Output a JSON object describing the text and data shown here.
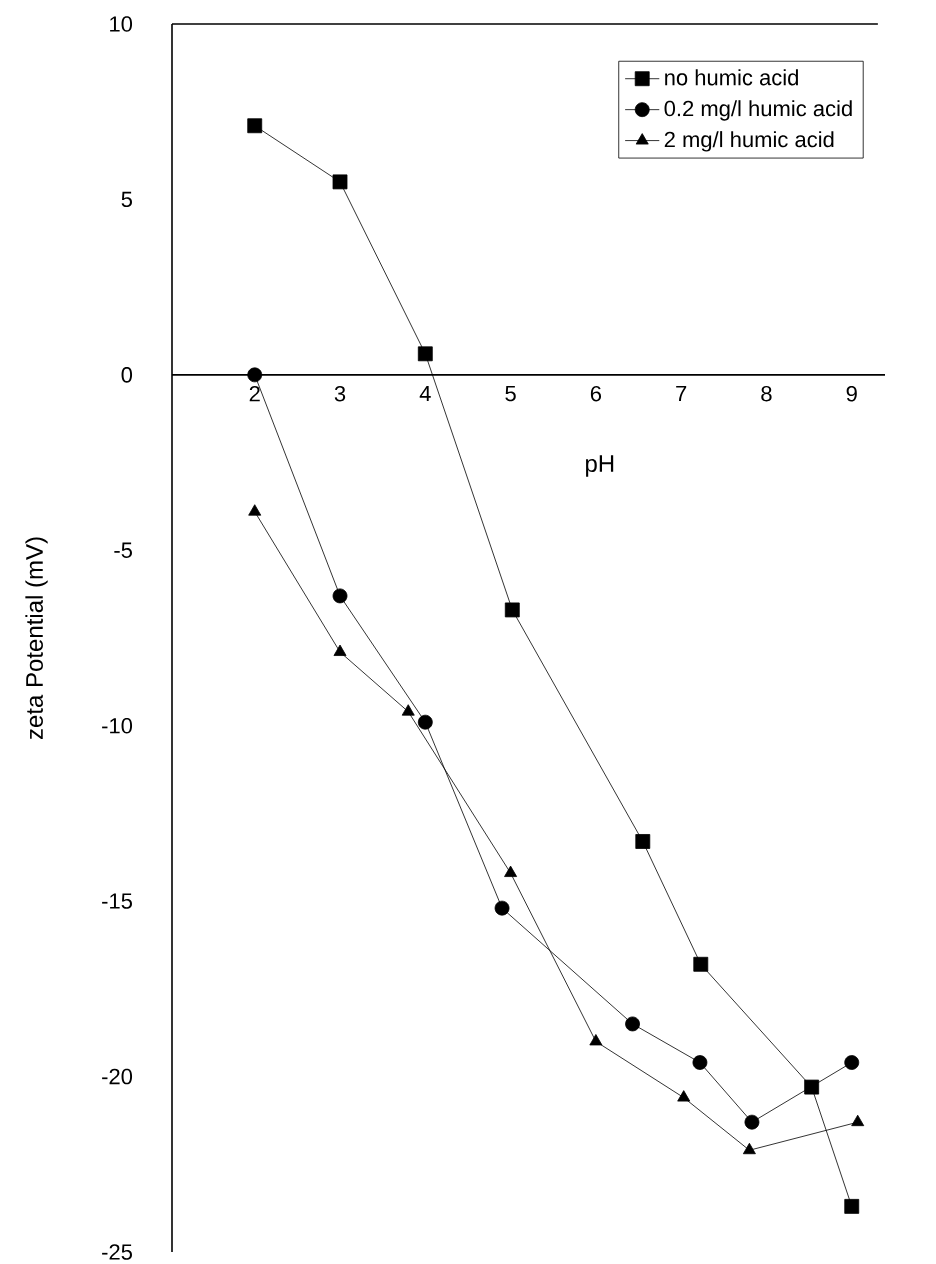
{
  "chart_data": {
    "type": "line",
    "xlabel": "pH",
    "ylabel": "zeta Potential (mV)",
    "xlim": [
      1.03,
      9.39
    ],
    "ylim": [
      -25,
      10
    ],
    "xticks": [
      2,
      3,
      4,
      5,
      6,
      7,
      8,
      9
    ],
    "yticks": [
      -25,
      -20,
      -15,
      -10,
      -5,
      0,
      5,
      10
    ],
    "legend": "top right",
    "grid": false,
    "series": [
      {
        "name": "no humic acid",
        "color": "#000000",
        "marker": "square",
        "x": [
          2,
          3,
          4,
          5.02,
          6.55,
          7.23,
          8.53,
          9.0
        ],
        "values": [
          7.1,
          5.5,
          0.6,
          -6.7,
          -13.3,
          -16.8,
          -20.3,
          -23.7
        ]
      },
      {
        "name": "0.2 mg/l humic acid",
        "color": "#000000",
        "marker": "circle",
        "x": [
          2,
          3,
          4,
          4.9,
          6.43,
          7.22,
          7.83,
          9.0
        ],
        "values": [
          0,
          -6.3,
          -9.9,
          -15.2,
          -18.5,
          -19.6,
          -21.3,
          -19.6
        ]
      },
      {
        "name": "2 mg/l humic acid",
        "color": "#000000",
        "marker": "triangle",
        "x": [
          2,
          3,
          3.8,
          5.0,
          6.0,
          7.03,
          7.8,
          9.07
        ],
        "values": [
          -3.9,
          -7.9,
          -9.6,
          -14.2,
          -19.0,
          -20.6,
          -22.1,
          -21.3
        ]
      }
    ]
  }
}
